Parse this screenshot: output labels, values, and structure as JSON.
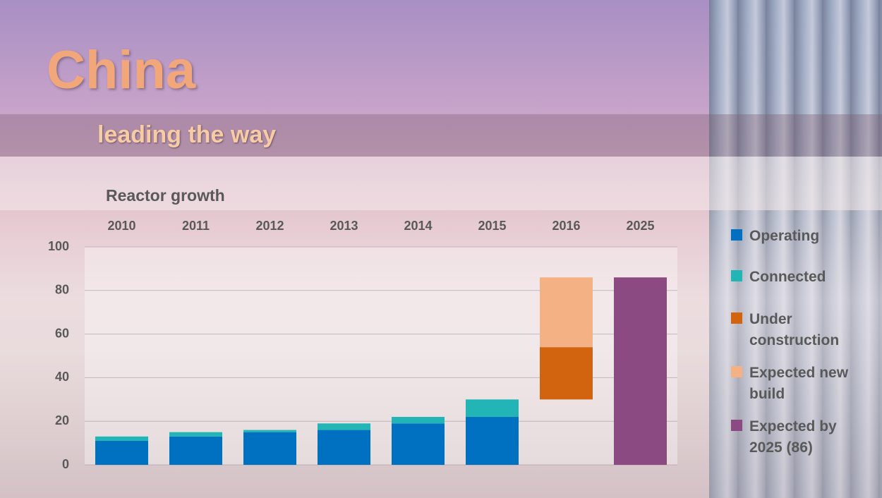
{
  "header": {
    "title": "China",
    "subtitle": "leading the way"
  },
  "chart_data": {
    "type": "stacked_bar",
    "title": "Reactor growth",
    "categories": [
      "2010",
      "2011",
      "2012",
      "2013",
      "2014",
      "2015",
      "2016",
      "2025"
    ],
    "stack_base": [
      0,
      0,
      0,
      0,
      0,
      0,
      30,
      0
    ],
    "series": [
      {
        "name": "Operating",
        "color": "#0070c0",
        "values": [
          11,
          13,
          15,
          16,
          19,
          22,
          null,
          null
        ]
      },
      {
        "name": "Connected",
        "color": "#22b5b5",
        "values": [
          2,
          2,
          1,
          3,
          3,
          8,
          null,
          null
        ]
      },
      {
        "name": "Under construction",
        "color": "#d2640f",
        "values": [
          null,
          null,
          null,
          null,
          null,
          null,
          24,
          null
        ]
      },
      {
        "name": "Expected new build",
        "color": "#f4b183",
        "values": [
          null,
          null,
          null,
          null,
          null,
          null,
          32,
          null
        ]
      },
      {
        "name": "Expected by 2025 (86)",
        "color": "#8c4a82",
        "values": [
          null,
          null,
          null,
          null,
          null,
          null,
          null,
          86
        ]
      }
    ],
    "ylim": [
      0,
      100
    ],
    "yticks": [
      0,
      20,
      40,
      60,
      80,
      100
    ],
    "grid": true
  }
}
